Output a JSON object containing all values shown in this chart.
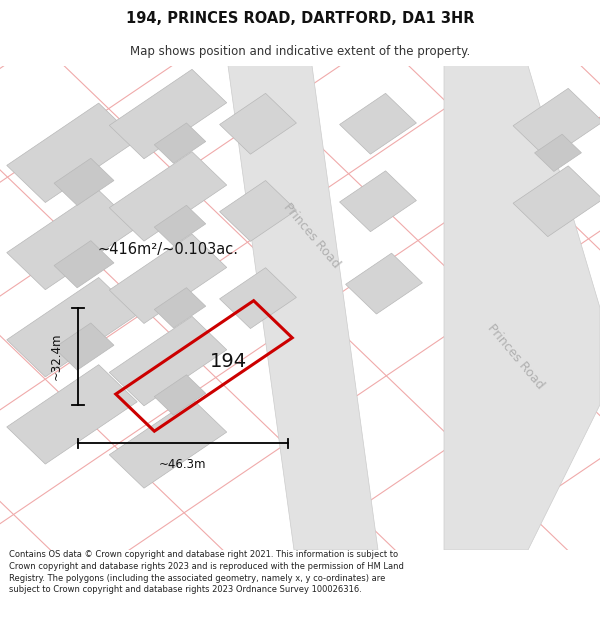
{
  "title_line1": "194, PRINCES ROAD, DARTFORD, DA1 3HR",
  "title_line2": "Map shows position and indicative extent of the property.",
  "footer_text": "Contains OS data © Crown copyright and database right 2021. This information is subject to Crown copyright and database rights 2023 and is reproduced with the permission of HM Land Registry. The polygons (including the associated geometry, namely x, y co-ordinates) are subject to Crown copyright and database rights 2023 Ordnance Survey 100026316.",
  "bg_color": "#ffffff",
  "map_bg_color": "#f7f4f4",
  "building_fill_color": "#d4d4d4",
  "building_edge_color": "#b8b8b8",
  "red_line_color": "#cc0000",
  "pink_line_color": "#f0aaaa",
  "property_label": "194",
  "area_text": "~416m²/~0.103ac.",
  "dim_width": "~46.3m",
  "dim_height": "~32.4m",
  "princes_road_label": "Princes Road",
  "princes_road_label2": "Princes Road"
}
